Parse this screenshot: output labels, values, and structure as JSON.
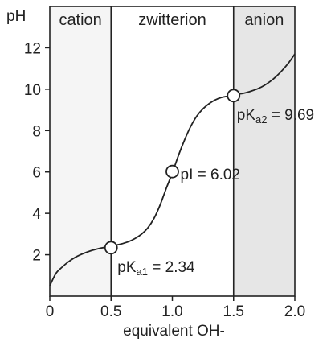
{
  "chart_data": {
    "type": "line",
    "xlabel": "equivalent OH-",
    "ylabel": "pH",
    "xlim": [
      0,
      2.0
    ],
    "ylim": [
      0,
      14
    ],
    "x_ticks": [
      "0",
      "0.5",
      "1.0",
      "1.5",
      "2.0"
    ],
    "y_ticks": [
      "2",
      "4",
      "6",
      "8",
      "10",
      "12"
    ],
    "regions": [
      {
        "label": "cation",
        "x_start": 0,
        "x_end": 0.5,
        "fill": "#f5f5f5"
      },
      {
        "label": "zwitterion",
        "x_start": 0.5,
        "x_end": 1.5,
        "fill": "#ffffff"
      },
      {
        "label": "anion",
        "x_start": 1.5,
        "x_end": 2.0,
        "fill": "#e6e6e6"
      }
    ],
    "series": [
      {
        "x": [
          0,
          0.05,
          0.1,
          0.15,
          0.2,
          0.25,
          0.3,
          0.35,
          0.4,
          0.45,
          0.5,
          0.55,
          0.6,
          0.65,
          0.7,
          0.75,
          0.8,
          0.85,
          0.9,
          0.95,
          1.0,
          1.05,
          1.1,
          1.15,
          1.2,
          1.25,
          1.3,
          1.35,
          1.4,
          1.45,
          1.5,
          1.55,
          1.6,
          1.65,
          1.7,
          1.75,
          1.8,
          1.85,
          1.9,
          1.95,
          2.0
        ],
        "y": [
          0.5,
          1.1,
          1.4,
          1.65,
          1.85,
          2.0,
          2.12,
          2.22,
          2.3,
          2.36,
          2.42,
          2.48,
          2.55,
          2.65,
          2.8,
          3.0,
          3.3,
          3.75,
          4.4,
          5.2,
          5.95,
          6.8,
          7.55,
          8.2,
          8.7,
          9.05,
          9.3,
          9.48,
          9.6,
          9.66,
          9.72,
          9.77,
          9.83,
          9.92,
          10.03,
          10.18,
          10.38,
          10.63,
          10.93,
          11.28,
          11.7
        ]
      }
    ],
    "points": [
      {
        "x": 0.5,
        "y": 2.34,
        "label_main": "pK",
        "label_sub": "a1",
        "label_rest": " = 2.34"
      },
      {
        "x": 1.0,
        "y": 6.02,
        "label_main": "pI  = 6.02",
        "label_sub": "",
        "label_rest": ""
      },
      {
        "x": 1.5,
        "y": 9.69,
        "label_main": "pK",
        "label_sub": "a2",
        "label_rest": "  = 9.69"
      }
    ],
    "grid": false,
    "legend": "none"
  }
}
